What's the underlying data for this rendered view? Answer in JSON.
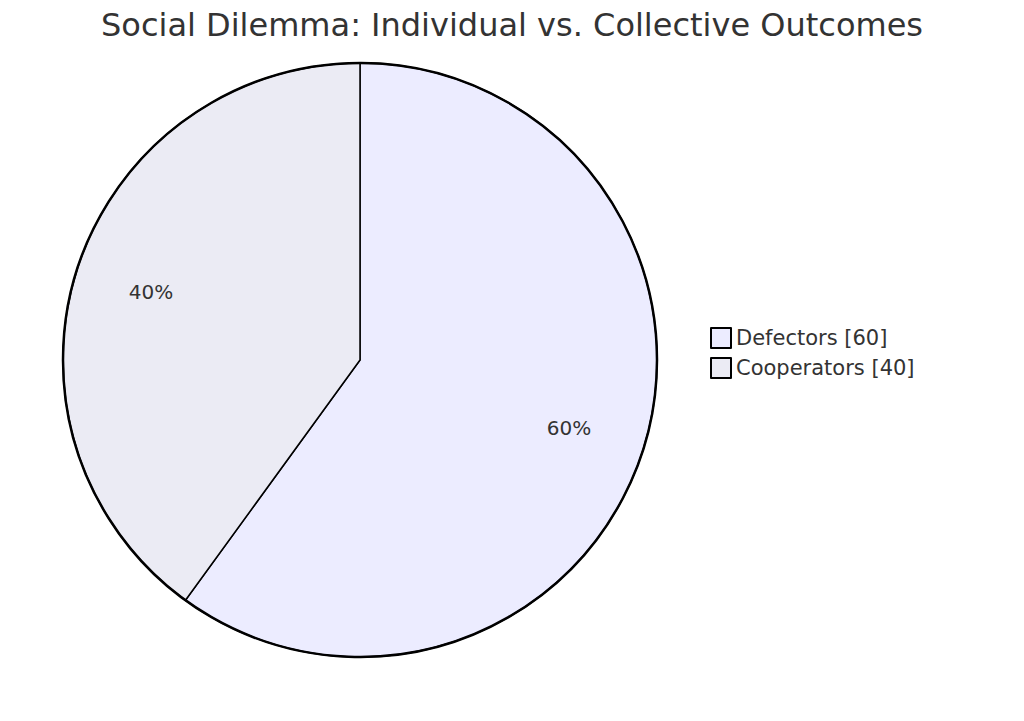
{
  "chart_data": {
    "type": "pie",
    "title": "Social Dilemma: Individual vs. Collective Outcomes",
    "categories": [
      "Defectors [60]",
      "Cooperators [40]"
    ],
    "values": [
      60,
      40
    ],
    "value_labels": [
      "60%",
      "40%"
    ],
    "colors": [
      "#ECECFF",
      "#EBEBF4"
    ],
    "data_labels": true,
    "legend": "right"
  }
}
